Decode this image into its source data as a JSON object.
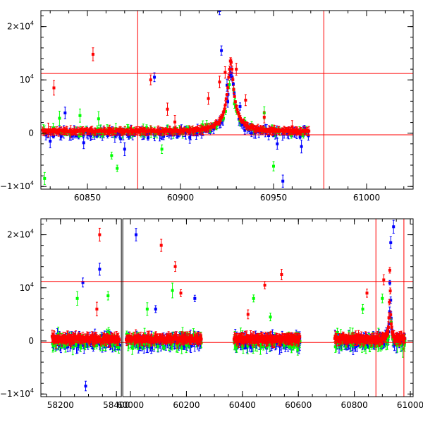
{
  "chart_data": [
    {
      "type": "scatter",
      "title": "",
      "xlabel": "",
      "ylabel": "",
      "xlim": [
        60825,
        61025
      ],
      "ylim": [
        -10500,
        23000
      ],
      "x_ticks": [
        60850,
        60900,
        60950,
        61000
      ],
      "x_tick_labels": [
        "60850",
        "60900",
        "60950",
        "61000"
      ],
      "y_ticks": [
        {
          "value": -10000,
          "label": "−1×10",
          "exp": "4"
        },
        {
          "value": 0,
          "label": "0",
          "exp": ""
        },
        {
          "value": 10000,
          "label": "10",
          "exp": "4"
        },
        {
          "value": 20000,
          "label": "2×10",
          "exp": "4"
        }
      ],
      "hlines": [
        -300,
        11200
      ],
      "vlines": [
        60877,
        60977
      ],
      "peak_time": 60927,
      "peak_value": 13500,
      "series": [
        {
          "name": "red",
          "color": "#ff0000",
          "points": [
            [
              60829,
              600
            ],
            [
              60832,
              8500
            ],
            [
              60841,
              300
            ],
            [
              60853,
              14800
            ],
            [
              60862,
              900
            ],
            [
              60884,
              10000
            ],
            [
              60893,
              4500
            ],
            [
              60897,
              2100
            ],
            [
              60915,
              6500
            ],
            [
              60921,
              9600
            ],
            [
              60924,
              11400
            ],
            [
              60927,
              13500
            ],
            [
              60930,
              12000
            ],
            [
              60935,
              6200
            ],
            [
              60945,
              3000
            ],
            [
              60960,
              1200
            ],
            [
              60969,
              400
            ]
          ]
        },
        {
          "name": "blue",
          "color": "#0000ff",
          "points": [
            [
              60830,
              -1500
            ],
            [
              60838,
              3800
            ],
            [
              60848,
              -1800
            ],
            [
              60870,
              -3000
            ],
            [
              60886,
              10500
            ],
            [
              60905,
              -800
            ],
            [
              60921,
              23000
            ],
            [
              60922,
              15500
            ],
            [
              60925,
              9000
            ],
            [
              60932,
              5000
            ],
            [
              60948,
              500
            ],
            [
              60952,
              -2000
            ],
            [
              60955,
              -9000
            ],
            [
              60965,
              -2500
            ]
          ]
        },
        {
          "name": "green",
          "color": "#00ff00",
          "points": [
            [
              60827,
              -8500
            ],
            [
              60835,
              2800
            ],
            [
              60846,
              3300
            ],
            [
              60856,
              2700
            ],
            [
              60863,
              -4200
            ],
            [
              60866,
              -6600
            ],
            [
              60880,
              600
            ],
            [
              60890,
              -3000
            ],
            [
              60912,
              1500
            ],
            [
              60929,
              5500
            ],
            [
              60945,
              3800
            ],
            [
              60950,
              -6200
            ]
          ]
        }
      ]
    },
    {
      "type": "scatter",
      "title": "",
      "xlabel": "",
      "ylabel": "",
      "xlim": [
        58130,
        61010
      ],
      "ylim": [
        -10500,
        23000
      ],
      "x_ticks": [
        58200,
        58400,
        60000,
        60200,
        60400,
        60600,
        60800,
        61000
      ],
      "x_tick_labels": [
        "58200",
        "58400",
        "60000",
        "60200",
        "60400",
        "60600",
        "60800",
        "61000"
      ],
      "y_ticks": [
        {
          "value": -10000,
          "label": "−1×10",
          "exp": "4"
        },
        {
          "value": 0,
          "label": "0",
          "exp": ""
        },
        {
          "value": 10000,
          "label": "10",
          "exp": "4"
        },
        {
          "value": 20000,
          "label": "2×10",
          "exp": "4"
        }
      ],
      "axis_break": [
        58420,
        59970
      ],
      "hlines": [
        -300,
        11200
      ],
      "vlines": [
        60877,
        60977
      ],
      "observing_seasons": [
        [
          58170,
          58410
        ],
        [
          59985,
          60255
        ],
        [
          60370,
          60605
        ],
        [
          60730,
          60980
        ]
      ],
      "series": [
        {
          "name": "red",
          "color": "#ff0000",
          "points": [
            [
              58340,
              20000
            ],
            [
              58330,
              6000
            ],
            [
              60110,
              18000
            ],
            [
              60160,
              14000
            ],
            [
              60180,
              9000
            ],
            [
              60420,
              5000
            ],
            [
              60480,
              10500
            ],
            [
              60540,
              12500
            ],
            [
              60845,
              9000
            ],
            [
              60905,
              11500
            ]
          ]
        },
        {
          "name": "blue",
          "color": "#0000ff",
          "points": [
            [
              58280,
              11000
            ],
            [
              58340,
              13500
            ],
            [
              58290,
              -8500
            ],
            [
              60020,
              20000
            ],
            [
              60090,
              6000
            ],
            [
              60230,
              8000
            ],
            [
              60940,
              21500
            ],
            [
              60930,
              18500
            ]
          ]
        },
        {
          "name": "green",
          "color": "#00ff00",
          "points": [
            [
              58260,
              8000
            ],
            [
              58370,
              8500
            ],
            [
              60060,
              6000
            ],
            [
              60150,
              9500
            ],
            [
              60440,
              8000
            ],
            [
              60500,
              4500
            ],
            [
              60830,
              6000
            ],
            [
              60900,
              8000
            ]
          ]
        }
      ]
    }
  ]
}
